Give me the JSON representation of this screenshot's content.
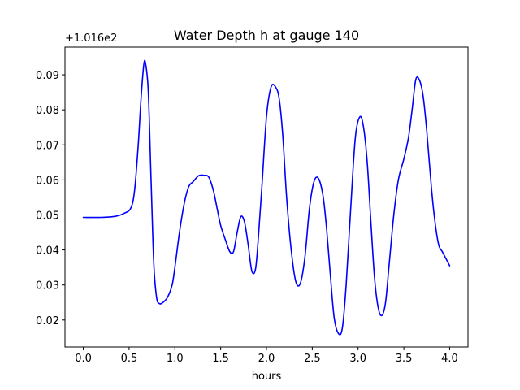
{
  "chart_data": {
    "type": "line",
    "title": "Water Depth h at gauge 140",
    "xlabel": "hours",
    "ylabel": "",
    "xlim": [
      -0.2,
      4.2
    ],
    "ylim": [
      0.0123,
      0.0979
    ],
    "y_offset_label": "+1.016e2",
    "xticks": [
      "0.0",
      "0.5",
      "1.0",
      "1.5",
      "2.0",
      "2.5",
      "3.0",
      "3.5",
      "4.0"
    ],
    "xtick_values": [
      0.0,
      0.5,
      1.0,
      1.5,
      2.0,
      2.5,
      3.0,
      3.5,
      4.0
    ],
    "yticks": [
      "0.02",
      "0.03",
      "0.04",
      "0.05",
      "0.06",
      "0.07",
      "0.08",
      "0.09"
    ],
    "ytick_values": [
      0.02,
      0.03,
      0.04,
      0.05,
      0.06,
      0.07,
      0.08,
      0.09
    ],
    "grid": false,
    "series": [
      {
        "color": "#0000ff",
        "x": [
          0.0,
          0.2,
          0.35,
          0.45,
          0.52,
          0.56,
          0.6,
          0.63,
          0.66,
          0.68,
          0.71,
          0.74,
          0.77,
          0.8,
          0.83,
          0.87,
          0.92,
          0.97,
          1.0,
          1.05,
          1.1,
          1.15,
          1.2,
          1.26,
          1.32,
          1.37,
          1.42,
          1.46,
          1.5,
          1.55,
          1.6,
          1.64,
          1.68,
          1.72,
          1.76,
          1.8,
          1.84,
          1.88,
          1.91,
          1.95,
          2.0,
          2.05,
          2.1,
          2.14,
          2.18,
          2.22,
          2.27,
          2.32,
          2.37,
          2.42,
          2.47,
          2.52,
          2.57,
          2.62,
          2.66,
          2.7,
          2.74,
          2.79,
          2.83,
          2.87,
          2.92,
          2.97,
          3.02,
          3.06,
          3.1,
          3.14,
          3.18,
          3.22,
          3.26,
          3.3,
          3.34,
          3.39,
          3.44,
          3.5,
          3.55,
          3.59,
          3.63,
          3.67,
          3.71,
          3.75,
          3.8,
          3.84,
          3.88,
          3.92,
          3.96,
          4.0
        ],
        "y": [
          0.0493,
          0.0493,
          0.0496,
          0.0505,
          0.052,
          0.057,
          0.07,
          0.083,
          0.0928,
          0.0932,
          0.085,
          0.06,
          0.036,
          0.0265,
          0.0247,
          0.025,
          0.0265,
          0.03,
          0.035,
          0.045,
          0.053,
          0.058,
          0.0595,
          0.0612,
          0.0613,
          0.0608,
          0.057,
          0.052,
          0.047,
          0.043,
          0.0395,
          0.0395,
          0.045,
          0.0495,
          0.048,
          0.0415,
          0.034,
          0.0345,
          0.043,
          0.058,
          0.078,
          0.0865,
          0.0865,
          0.083,
          0.072,
          0.055,
          0.04,
          0.031,
          0.0305,
          0.038,
          0.052,
          0.0596,
          0.0603,
          0.055,
          0.045,
          0.032,
          0.0205,
          0.016,
          0.018,
          0.03,
          0.052,
          0.072,
          0.078,
          0.075,
          0.065,
          0.048,
          0.032,
          0.0235,
          0.0213,
          0.025,
          0.036,
          0.05,
          0.06,
          0.066,
          0.072,
          0.08,
          0.0886,
          0.0885,
          0.084,
          0.074,
          0.058,
          0.048,
          0.0415,
          0.0395,
          0.0375,
          0.0355
        ]
      }
    ]
  }
}
